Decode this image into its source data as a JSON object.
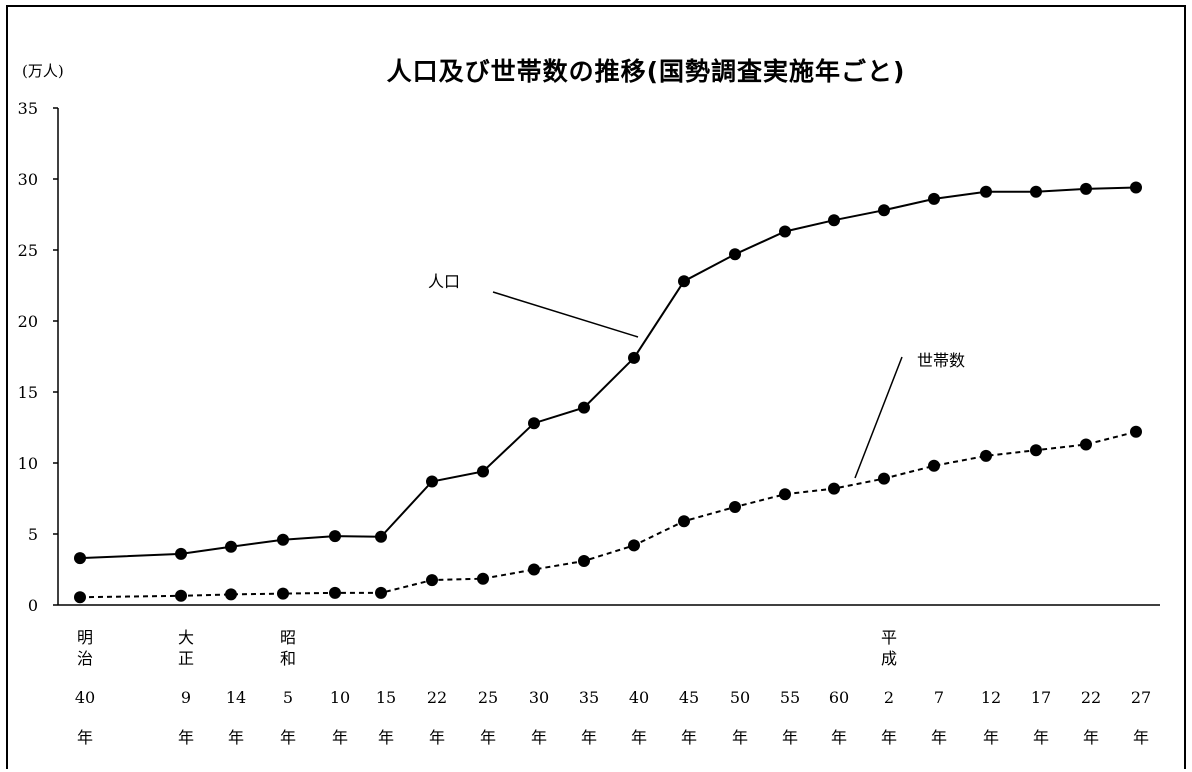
{
  "chart_data": {
    "type": "line",
    "title": "人口及び世帯数の推移(国勢調査実施年ごと)",
    "y_unit": "(万人)",
    "ylim": [
      0,
      35
    ],
    "y_ticks": [
      "0",
      "5",
      "10",
      "15",
      "20",
      "25",
      "30",
      "35"
    ],
    "grid": false,
    "x": [
      "40",
      "9",
      "14",
      "5",
      "10",
      "15",
      "22",
      "25",
      "30",
      "35",
      "40",
      "45",
      "50",
      "55",
      "60",
      "2",
      "7",
      "12",
      "17",
      "22",
      "27"
    ],
    "x_suffix": "年",
    "eras": [
      {
        "label_top": "明",
        "label_bottom": "治",
        "at_index": 0
      },
      {
        "label_top": "大",
        "label_bottom": "正",
        "at_index": 1
      },
      {
        "label_top": "昭",
        "label_bottom": "和",
        "at_index": 3
      },
      {
        "label_top": "平",
        "label_bottom": "成",
        "at_index": 15
      }
    ],
    "series": [
      {
        "name": "人口",
        "style": "solid",
        "values": [
          3.3,
          3.6,
          4.1,
          4.6,
          4.85,
          4.8,
          8.7,
          9.4,
          12.8,
          13.9,
          17.4,
          22.8,
          24.7,
          26.3,
          27.1,
          27.8,
          28.6,
          29.1,
          29.1,
          29.3,
          29.4
        ]
      },
      {
        "name": "世帯数",
        "style": "dashed",
        "values": [
          0.55,
          0.65,
          0.75,
          0.8,
          0.85,
          0.85,
          1.75,
          1.85,
          2.5,
          3.1,
          4.2,
          5.9,
          6.9,
          7.8,
          8.2,
          8.9,
          9.8,
          10.5,
          10.9,
          11.3,
          12.2
        ]
      }
    ],
    "annotations": [
      {
        "text": "人口",
        "series": "人口"
      },
      {
        "text": "世帯数",
        "series": "世帯数"
      }
    ]
  },
  "colors": {
    "line": "#000000",
    "marker": "#000000"
  }
}
